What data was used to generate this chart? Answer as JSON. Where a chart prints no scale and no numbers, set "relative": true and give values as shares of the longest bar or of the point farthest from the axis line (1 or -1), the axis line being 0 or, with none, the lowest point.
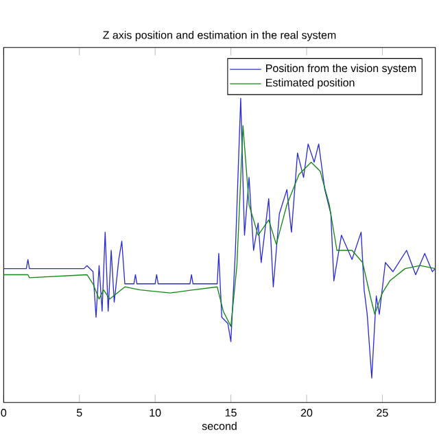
{
  "chart_data": {
    "type": "line",
    "title": "Z axis position and estimation in the real system",
    "xlabel": "second",
    "relative": true,
    "xlim": [
      0,
      28.5
    ],
    "xticks": [
      0,
      5,
      10,
      15,
      20,
      25
    ],
    "legend": "top right",
    "grid": false,
    "series": [
      {
        "name": "Position from the vision system",
        "color": "#2b2bd6",
        "x": [
          0,
          1.5,
          1.6,
          1.7,
          5.3,
          5.5,
          5.9,
          6.1,
          6.3,
          6.5,
          6.7,
          6.9,
          7.1,
          7.3,
          7.6,
          7.8,
          8.0,
          8.6,
          8.7,
          8.8,
          10.0,
          10.1,
          10.2,
          12.3,
          12.4,
          12.5,
          14.1,
          14.2,
          14.4,
          14.8,
          15.0,
          15.3,
          15.65,
          15.9,
          16.2,
          16.5,
          16.8,
          17.0,
          17.5,
          17.8,
          18.2,
          18.7,
          19.0,
          19.4,
          19.8,
          20.1,
          20.5,
          20.8,
          21.2,
          21.6,
          21.8,
          22.3,
          23.0,
          23.6,
          23.8,
          24.0,
          24.3,
          24.6,
          24.8,
          25.2,
          25.7,
          26.6,
          27.2,
          27.8,
          28.3,
          28.5
        ],
        "values": [
          0.44,
          0.44,
          0.47,
          0.44,
          0.44,
          0.45,
          0.43,
          0.28,
          0.45,
          0.3,
          0.56,
          0.3,
          0.5,
          0.33,
          0.47,
          0.53,
          0.39,
          0.39,
          0.42,
          0.39,
          0.39,
          0.42,
          0.39,
          0.39,
          0.42,
          0.39,
          0.39,
          0.49,
          0.28,
          0.26,
          0.2,
          0.5,
          1.0,
          0.55,
          0.74,
          0.5,
          0.59,
          0.46,
          0.67,
          0.38,
          0.62,
          0.7,
          0.56,
          0.82,
          0.74,
          0.85,
          0.79,
          0.85,
          0.7,
          0.62,
          0.4,
          0.55,
          0.47,
          0.56,
          0.37,
          0.29,
          0.08,
          0.35,
          0.29,
          0.46,
          0.43,
          0.5,
          0.42,
          0.49,
          0.43,
          0.44
        ]
      },
      {
        "name": "Estimated position",
        "color": "#118811",
        "x": [
          0,
          1.6,
          1.7,
          5.5,
          5.9,
          6.3,
          6.6,
          7.0,
          7.5,
          8.0,
          9,
          11,
          12.5,
          14.1,
          14.5,
          15.0,
          15.4,
          15.8,
          16.2,
          16.8,
          17.5,
          18.0,
          18.7,
          19.5,
          20.3,
          20.9,
          21.5,
          22.0,
          23.0,
          23.7,
          24.2,
          24.5,
          25.0,
          25.5,
          26.5,
          27.5,
          28.5
        ],
        "values": [
          0.42,
          0.42,
          0.41,
          0.42,
          0.39,
          0.34,
          0.37,
          0.34,
          0.36,
          0.38,
          0.37,
          0.36,
          0.37,
          0.38,
          0.3,
          0.25,
          0.45,
          0.91,
          0.65,
          0.55,
          0.6,
          0.52,
          0.65,
          0.75,
          0.79,
          0.76,
          0.65,
          0.5,
          0.5,
          0.46,
          0.35,
          0.29,
          0.36,
          0.4,
          0.44,
          0.45,
          0.44
        ]
      }
    ]
  }
}
